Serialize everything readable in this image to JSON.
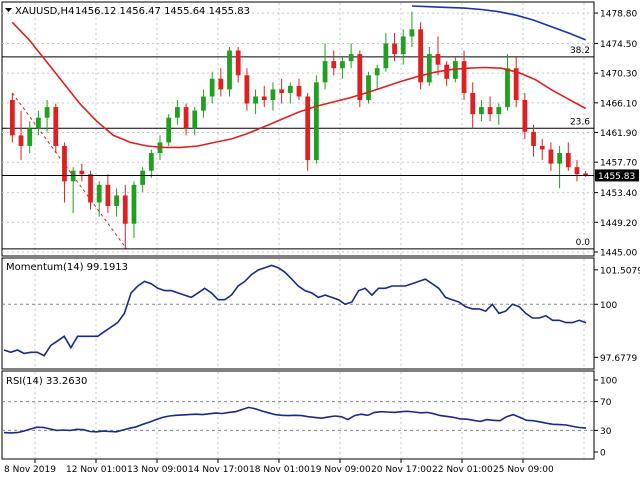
{
  "chart_data": [
    {
      "type": "candlestick",
      "panel": "price",
      "title": "XAUUSD,H4",
      "ohlc_readout": "1456.12 1456.47 1455.64 1455.83",
      "current_price_label": "1455.83",
      "y_ticks": [
        "1478.80",
        "1474.50",
        "1470.30",
        "1466.10",
        "1461.90",
        "1457.70",
        "1453.40",
        "1449.20",
        "1445.00"
      ],
      "ylim": [
        1445.0,
        1479.8
      ],
      "current_price": 1455.83,
      "fibonacci_levels": [
        {
          "label": "38.2",
          "price": 1472.6
        },
        {
          "label": "23.6",
          "price": 1462.5
        },
        {
          "label": "0.0",
          "price": 1445.45
        }
      ],
      "x_ticks": [
        "8 Nov 2019",
        "12 Nov 01:00",
        "13 Nov 09:00",
        "14 Nov 17:00",
        "18 Nov 01:00",
        "19 Nov 09:00",
        "20 Nov 17:00",
        "22 Nov 01:00",
        "25 Nov 09:00"
      ],
      "colors": {
        "up": "#20a020",
        "down": "#e02020",
        "ma_fast": "#e02020",
        "ma_slow": "#2030b0",
        "fib_line": "#000000",
        "grid": "#c8c8c8"
      },
      "candles": [
        [
          1466.5,
          1467.5,
          1460.5,
          1461.5
        ],
        [
          1461.5,
          1465.0,
          1458.0,
          1460.0
        ],
        [
          1460.0,
          1463.5,
          1459.0,
          1462.5
        ],
        [
          1462.5,
          1465.0,
          1461.5,
          1464.0
        ],
        [
          1464.0,
          1466.5,
          1462.0,
          1465.5
        ],
        [
          1465.5,
          1466.0,
          1459.0,
          1460.0
        ],
        [
          1460.0,
          1460.5,
          1452.0,
          1455.0
        ],
        [
          1455.0,
          1457.0,
          1450.5,
          1456.5
        ],
        [
          1456.5,
          1457.5,
          1455.0,
          1456.0
        ],
        [
          1456.0,
          1456.5,
          1451.0,
          1452.0
        ],
        [
          1452.0,
          1455.0,
          1450.0,
          1454.5
        ],
        [
          1454.5,
          1456.0,
          1450.5,
          1451.5
        ],
        [
          1451.5,
          1454.0,
          1450.0,
          1453.0
        ],
        [
          1453.0,
          1454.5,
          1445.5,
          1449.0
        ],
        [
          1449.0,
          1455.0,
          1447.0,
          1454.5
        ],
        [
          1454.5,
          1457.0,
          1453.5,
          1456.5
        ],
        [
          1456.5,
          1459.5,
          1455.5,
          1459.0
        ],
        [
          1459.0,
          1461.5,
          1458.0,
          1460.5
        ],
        [
          1460.5,
          1464.5,
          1460.0,
          1464.0
        ],
        [
          1464.0,
          1466.5,
          1463.0,
          1465.5
        ],
        [
          1465.5,
          1466.0,
          1461.5,
          1462.5
        ],
        [
          1462.5,
          1465.5,
          1461.5,
          1465.0
        ],
        [
          1465.0,
          1468.0,
          1464.0,
          1467.0
        ],
        [
          1467.0,
          1470.5,
          1466.0,
          1469.5
        ],
        [
          1469.5,
          1471.0,
          1467.0,
          1468.0
        ],
        [
          1468.0,
          1474.0,
          1467.0,
          1473.5
        ],
        [
          1473.5,
          1474.0,
          1469.0,
          1470.0
        ],
        [
          1470.0,
          1471.0,
          1465.0,
          1466.0
        ],
        [
          1466.0,
          1468.0,
          1464.5,
          1467.0
        ],
        [
          1467.0,
          1468.5,
          1465.5,
          1466.5
        ],
        [
          1466.5,
          1469.0,
          1465.0,
          1468.0
        ],
        [
          1468.0,
          1469.5,
          1466.0,
          1467.5
        ],
        [
          1467.5,
          1469.0,
          1466.0,
          1468.5
        ],
        [
          1468.5,
          1469.5,
          1466.5,
          1467.0
        ],
        [
          1467.0,
          1467.5,
          1456.5,
          1458.0
        ],
        [
          1458.0,
          1470.0,
          1457.5,
          1469.0
        ],
        [
          1469.0,
          1474.5,
          1468.0,
          1472.0
        ],
        [
          1472.0,
          1473.5,
          1470.0,
          1471.0
        ],
        [
          1471.0,
          1472.5,
          1469.5,
          1472.0
        ],
        [
          1472.0,
          1474.5,
          1471.0,
          1473.0
        ],
        [
          1473.0,
          1473.5,
          1465.5,
          1466.5
        ],
        [
          1466.5,
          1470.5,
          1466.0,
          1470.0
        ],
        [
          1470.0,
          1471.5,
          1468.0,
          1471.0
        ],
        [
          1471.0,
          1476.0,
          1470.5,
          1474.5
        ],
        [
          1474.5,
          1476.0,
          1472.0,
          1473.0
        ],
        [
          1473.0,
          1476.5,
          1471.5,
          1475.5
        ],
        [
          1475.5,
          1479.0,
          1474.0,
          1476.5
        ],
        [
          1476.5,
          1477.5,
          1468.0,
          1469.0
        ],
        [
          1469.0,
          1474.0,
          1468.5,
          1473.0
        ],
        [
          1473.0,
          1475.5,
          1470.0,
          1471.5
        ],
        [
          1471.5,
          1472.0,
          1468.5,
          1469.5
        ],
        [
          1469.5,
          1472.5,
          1469.0,
          1472.0
        ],
        [
          1472.0,
          1473.5,
          1466.5,
          1467.5
        ],
        [
          1467.5,
          1469.0,
          1462.5,
          1464.5
        ],
        [
          1464.5,
          1466.5,
          1463.5,
          1465.5
        ],
        [
          1465.5,
          1467.0,
          1463.5,
          1464.5
        ],
        [
          1464.5,
          1466.0,
          1463.0,
          1465.5
        ],
        [
          1465.5,
          1473.0,
          1465.0,
          1471.0
        ],
        [
          1471.0,
          1472.5,
          1465.5,
          1466.5
        ],
        [
          1466.5,
          1467.5,
          1461.0,
          1462.0
        ],
        [
          1462.0,
          1463.0,
          1458.5,
          1460.0
        ],
        [
          1460.0,
          1461.0,
          1458.0,
          1459.5
        ],
        [
          1459.5,
          1460.5,
          1456.5,
          1457.5
        ],
        [
          1457.5,
          1460.0,
          1454.0,
          1459.0
        ],
        [
          1459.0,
          1460.5,
          1456.5,
          1457.0
        ],
        [
          1457.0,
          1458.0,
          1455.0,
          1456.0
        ],
        [
          1456.12,
          1456.47,
          1455.64,
          1455.83
        ]
      ],
      "ma_fast": [
        1477.5,
        1475.0,
        1472.0,
        1469.0,
        1466.0,
        1463.5,
        1461.5,
        1460.5,
        1460.0,
        1459.8,
        1459.8,
        1460.0,
        1460.5,
        1461.0,
        1461.8,
        1462.8,
        1463.8,
        1464.8,
        1465.6,
        1466.2,
        1466.8,
        1467.5,
        1468.3,
        1469.1,
        1469.8,
        1470.4,
        1470.8,
        1471.0,
        1471.1,
        1471.0,
        1470.4,
        1469.4,
        1467.9,
        1466.6,
        1465.3
      ],
      "ma_slow": [
        1479.8,
        1479.7,
        1479.6,
        1479.5,
        1479.3,
        1479.0,
        1478.5,
        1477.8,
        1476.9,
        1476.0,
        1475.0
      ],
      "ma_slow_start_index": 46
    },
    {
      "type": "line",
      "panel": "momentum",
      "title": "Momentum(14) 99.1913",
      "y_ticks": [
        "101.5079",
        "100",
        "97.6779"
      ],
      "ylim": [
        97.3,
        101.85
      ],
      "reference_level": 100,
      "values": [
        98.0,
        97.9,
        98.0,
        97.85,
        97.9,
        97.9,
        97.75,
        98.2,
        98.4,
        98.6,
        98.1,
        98.6,
        98.6,
        98.6,
        98.6,
        98.8,
        99.0,
        99.2,
        99.6,
        100.5,
        100.8,
        101.0,
        100.9,
        100.7,
        100.6,
        100.6,
        100.5,
        100.4,
        100.3,
        100.5,
        100.7,
        100.5,
        100.2,
        100.2,
        100.4,
        100.8,
        101.0,
        101.3,
        101.5,
        101.6,
        101.7,
        101.6,
        101.4,
        101.1,
        100.8,
        100.6,
        100.5,
        100.3,
        100.4,
        100.3,
        100.2,
        100.0,
        100.1,
        100.6,
        100.7,
        100.4,
        100.7,
        100.7,
        100.8,
        100.8,
        100.8,
        100.9,
        101.0,
        101.1,
        100.9,
        100.7,
        100.3,
        100.2,
        100.1,
        99.9,
        99.8,
        99.8,
        99.7,
        100.0,
        99.6,
        99.7,
        100.0,
        99.9,
        99.6,
        99.4,
        99.4,
        99.5,
        99.3,
        99.3,
        99.2,
        99.2,
        99.3,
        99.19
      ],
      "x_ticks": [
        "8 Nov 2019",
        "12 Nov 01:00",
        "13 Nov 09:00",
        "14 Nov 17:00",
        "18 Nov 01:00",
        "19 Nov 09:00",
        "20 Nov 17:00",
        "22 Nov 01:00",
        "25 Nov 09:00"
      ],
      "colors": {
        "line": "#1a2a8a",
        "level": "#888888"
      }
    },
    {
      "type": "line",
      "panel": "rsi",
      "title": "RSI(14) 33.2630",
      "y_ticks": [
        "100",
        "70",
        "30",
        "0"
      ],
      "ylim": [
        0,
        100
      ],
      "reference_levels": [
        70,
        30
      ],
      "values": [
        27.0,
        26.5,
        27.0,
        29.0,
        32.0,
        34.5,
        34.0,
        32.0,
        30.0,
        30.5,
        30.0,
        31.5,
        31.0,
        28.5,
        28.0,
        29.0,
        28.5,
        28.0,
        30.5,
        33.0,
        35.0,
        38.5,
        41.5,
        45.0,
        48.0,
        50.0,
        51.0,
        51.5,
        52.0,
        52.5,
        52.0,
        53.0,
        54.0,
        53.5,
        55.0,
        56.0,
        59.0,
        62.0,
        60.0,
        57.0,
        54.5,
        52.0,
        51.0,
        50.5,
        51.0,
        50.5,
        49.0,
        48.0,
        47.0,
        48.5,
        50.0,
        49.0,
        45.0,
        50.5,
        52.5,
        51.0,
        55.0,
        56.0,
        55.5,
        55.0,
        56.0,
        56.5,
        55.5,
        54.5,
        55.0,
        53.0,
        50.5,
        49.5,
        48.0,
        46.0,
        45.5,
        44.0,
        42.5,
        45.0,
        44.0,
        43.5,
        49.0,
        52.0,
        48.0,
        44.0,
        43.5,
        42.0,
        40.0,
        38.5,
        38.0,
        37.5,
        35.5,
        34.0,
        33.26
      ],
      "x_ticks": [
        "8 Nov 2019",
        "12 Nov 01:00",
        "13 Nov 09:00",
        "14 Nov 17:00",
        "18 Nov 01:00",
        "19 Nov 09:00",
        "20 Nov 17:00",
        "22 Nov 01:00",
        "25 Nov 09:00"
      ],
      "colors": {
        "line": "#1a2a8a",
        "level": "#888888"
      }
    }
  ]
}
